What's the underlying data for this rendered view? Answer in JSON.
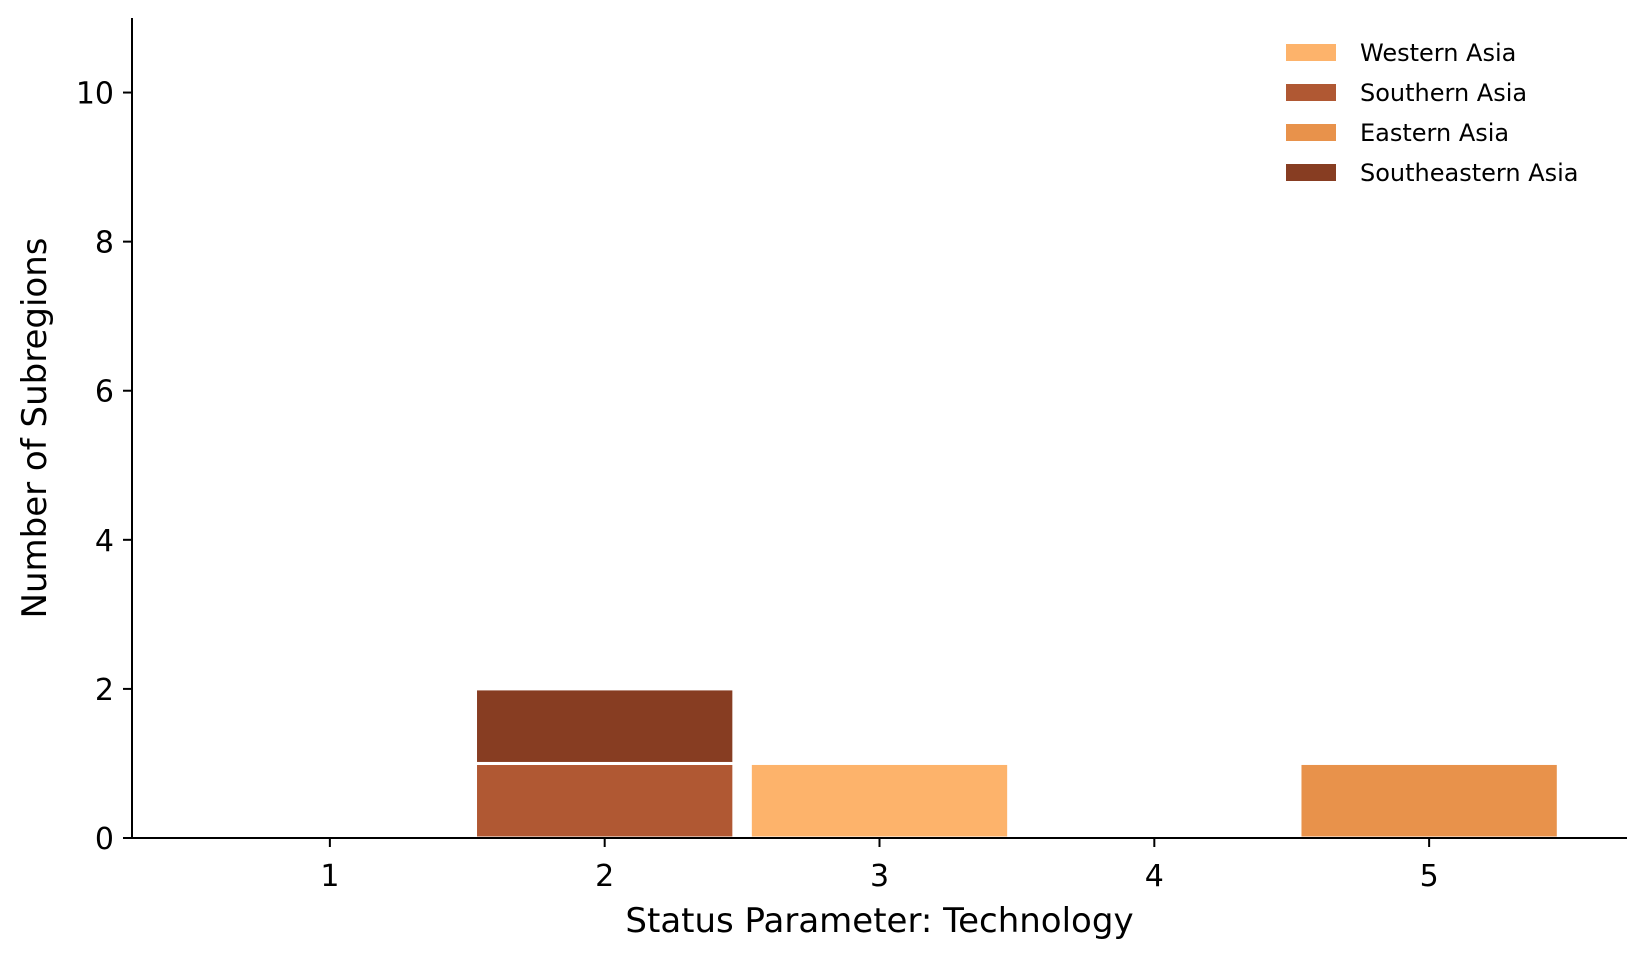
{
  "chart_data": {
    "type": "bar",
    "stacked": true,
    "xlabel": "Status Parameter: Technology",
    "ylabel": "Number of Subregions",
    "categories": [
      "1",
      "2",
      "3",
      "4",
      "5"
    ],
    "x_ticks": [
      1,
      2,
      3,
      4,
      5
    ],
    "y_ticks": [
      0,
      2,
      4,
      6,
      8,
      10
    ],
    "xlim": [
      0.28,
      5.72
    ],
    "ylim": [
      0,
      11
    ],
    "bar_width": 0.94,
    "grid": false,
    "legend_position": "top-right",
    "series": [
      {
        "name": "Western Asia",
        "color": "#fdb36b",
        "values": [
          0,
          0,
          1,
          0,
          0
        ]
      },
      {
        "name": "Southern Asia",
        "color": "#b05833",
        "values": [
          0,
          1,
          0,
          0,
          0
        ]
      },
      {
        "name": "Eastern Asia",
        "color": "#e8924b",
        "values": [
          0,
          0,
          0,
          0,
          1
        ]
      },
      {
        "name": "Southeastern Asia",
        "color": "#873d22",
        "values": [
          0,
          1,
          0,
          0,
          0
        ]
      }
    ]
  }
}
